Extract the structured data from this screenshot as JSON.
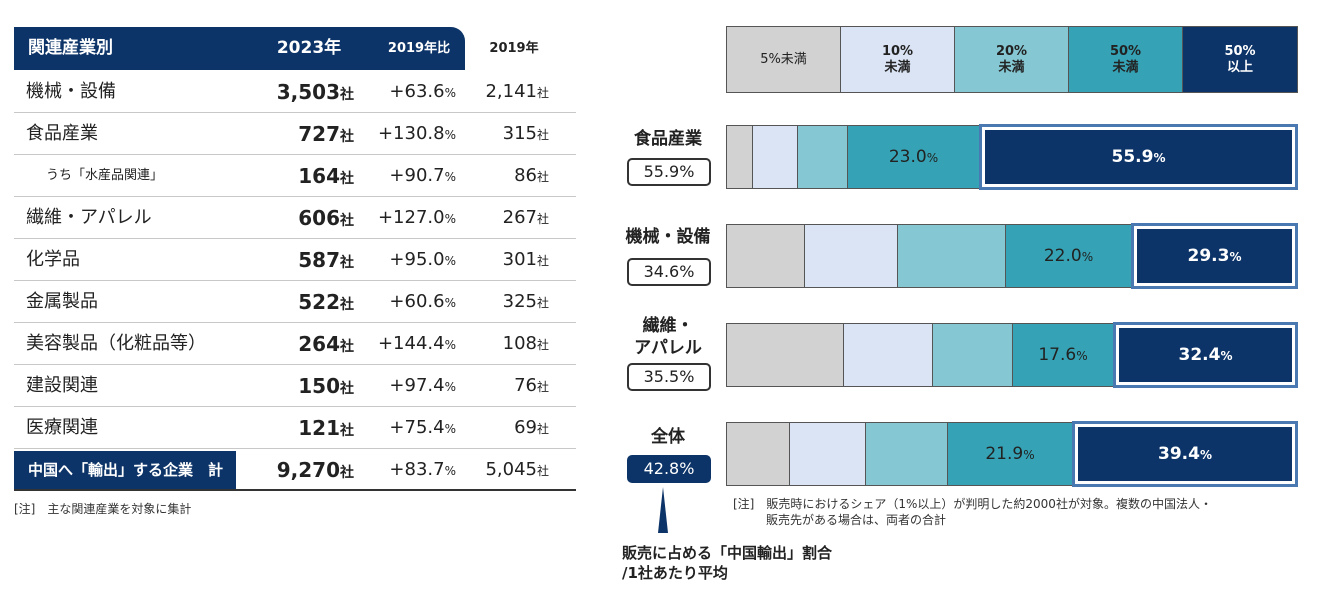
{
  "table": {
    "headers": [
      "関連産業別",
      "2023年",
      "2019年比",
      "2019年"
    ],
    "unit_company": "社",
    "unit_percent": "%",
    "rows": [
      {
        "name": "機械・設備",
        "v2023": "3,503",
        "change": "+63.6",
        "v2019": "2,141",
        "sub": false
      },
      {
        "name": "食品産業",
        "v2023": "727",
        "change": "+130.8",
        "v2019": "315",
        "sub": false
      },
      {
        "name": "うち「水産品関連」",
        "v2023": "164",
        "change": "+90.7",
        "v2019": "86",
        "sub": true
      },
      {
        "name": "繊維・アパレル",
        "v2023": "606",
        "change": "+127.0",
        "v2019": "267",
        "sub": false
      },
      {
        "name": "化学品",
        "v2023": "587",
        "change": "+95.0",
        "v2019": "301",
        "sub": false
      },
      {
        "name": "金属製品",
        "v2023": "522",
        "change": "+60.6",
        "v2019": "325",
        "sub": false
      },
      {
        "name": "美容製品（化粧品等）",
        "v2023": "264",
        "change": "+144.4",
        "v2019": "108",
        "sub": false
      },
      {
        "name": "建設関連",
        "v2023": "150",
        "change": "+97.4",
        "v2019": "76",
        "sub": false
      },
      {
        "name": "医療関連",
        "v2023": "121",
        "change": "+75.4",
        "v2019": "69",
        "sub": false
      }
    ],
    "total": {
      "name": "中国へ「輸出」する企業　計",
      "v2023": "9,270",
      "change": "+83.7",
      "v2019": "5,045"
    },
    "note": "[注]　主な関連産業を対象に集計"
  },
  "chart_data": {
    "type": "bar",
    "orientation": "horizontal-stacked-100",
    "legend": [
      {
        "label": "5%未満",
        "color": "#d2d2d2"
      },
      {
        "label": "10%\n未満",
        "color": "#dbe4f4"
      },
      {
        "label": "20%\n未満",
        "color": "#85c8d3"
      },
      {
        "label": "50%\n未満",
        "color": "#35a3b5"
      },
      {
        "label": "50%\n以上",
        "color": "#0d3468"
      }
    ],
    "categories": [
      {
        "name": "食品産業",
        "avg": "55.9%",
        "highlight": false,
        "values": [
          4.5,
          7.9,
          8.7,
          23.0,
          55.9
        ],
        "labels": [
          "",
          "",
          "",
          "23.0",
          "55.9"
        ]
      },
      {
        "name": "機械・設備",
        "avg": "34.6%",
        "highlight": false,
        "values": [
          13.6,
          16.2,
          18.9,
          22.0,
          29.3
        ],
        "labels": [
          "",
          "",
          "",
          "22.0",
          "29.3"
        ]
      },
      {
        "name": "繊維・\nアパレル",
        "avg": "35.5%",
        "highlight": false,
        "values": [
          20.5,
          15.5,
          13.9,
          17.6,
          32.4
        ],
        "labels": [
          "",
          "",
          "",
          "17.6",
          "32.4"
        ]
      },
      {
        "name": "全体",
        "avg": "42.8%",
        "highlight": true,
        "values": [
          11.0,
          13.3,
          14.4,
          21.9,
          39.4
        ],
        "labels": [
          "",
          "",
          "",
          "21.9",
          "39.4"
        ]
      }
    ],
    "pct_suffix": "%",
    "pointer_label": "販売に占める「中国輸出」割合\n/1社あたり平均",
    "note_lines": [
      "[注]　販売時におけるシェア（1%以上）が判明した約2000社が対象。複数の中国法人・",
      "販売先がある場合は、両者の合計"
    ]
  }
}
